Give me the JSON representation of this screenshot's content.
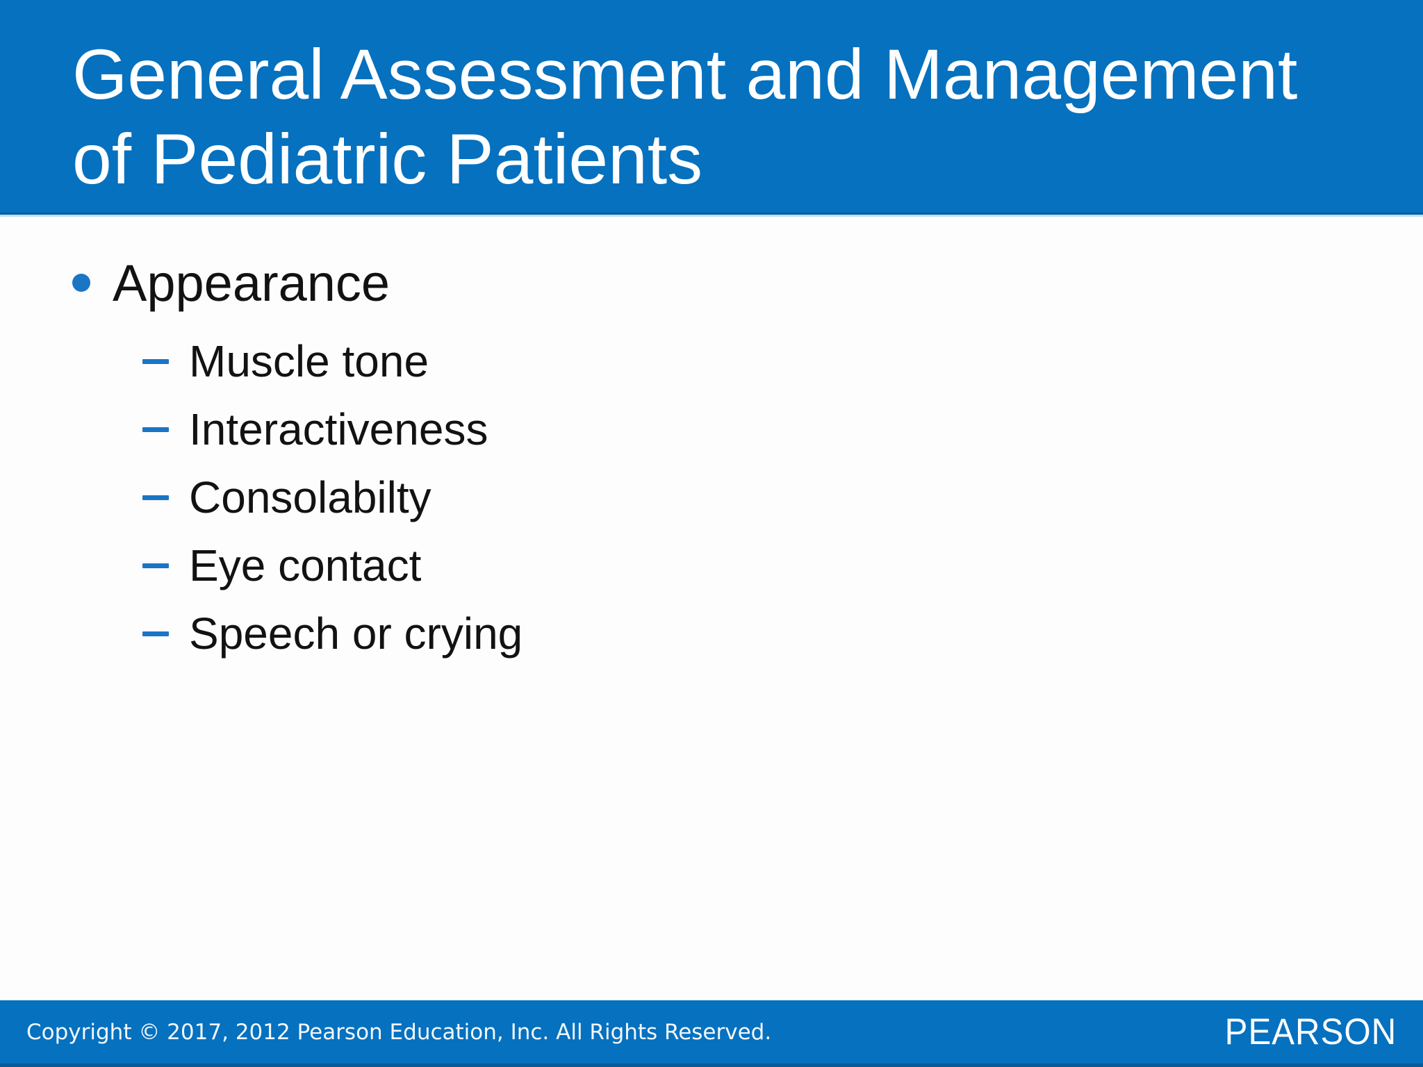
{
  "slide": {
    "title": {
      "line1": "General Assessment and Management",
      "line2": "of Pediatric Patients"
    },
    "content": {
      "bullet": {
        "label": "Appearance"
      },
      "sub_items": [
        {
          "label": "Muscle tone"
        },
        {
          "label": "Interactiveness"
        },
        {
          "label": "Consolabilty"
        },
        {
          "label": "Eye contact"
        },
        {
          "label": "Speech or crying"
        }
      ]
    },
    "footer": {
      "copyright": "Copyright © 2017, 2012 Pearson Education, Inc. All Rights Reserved.",
      "brand": "PEARSON"
    },
    "colors": {
      "header_blue": "#0571bf",
      "accent_blue": "#1a75c5",
      "body_text": "#121212",
      "footer_text": "#f2f8fc"
    }
  }
}
